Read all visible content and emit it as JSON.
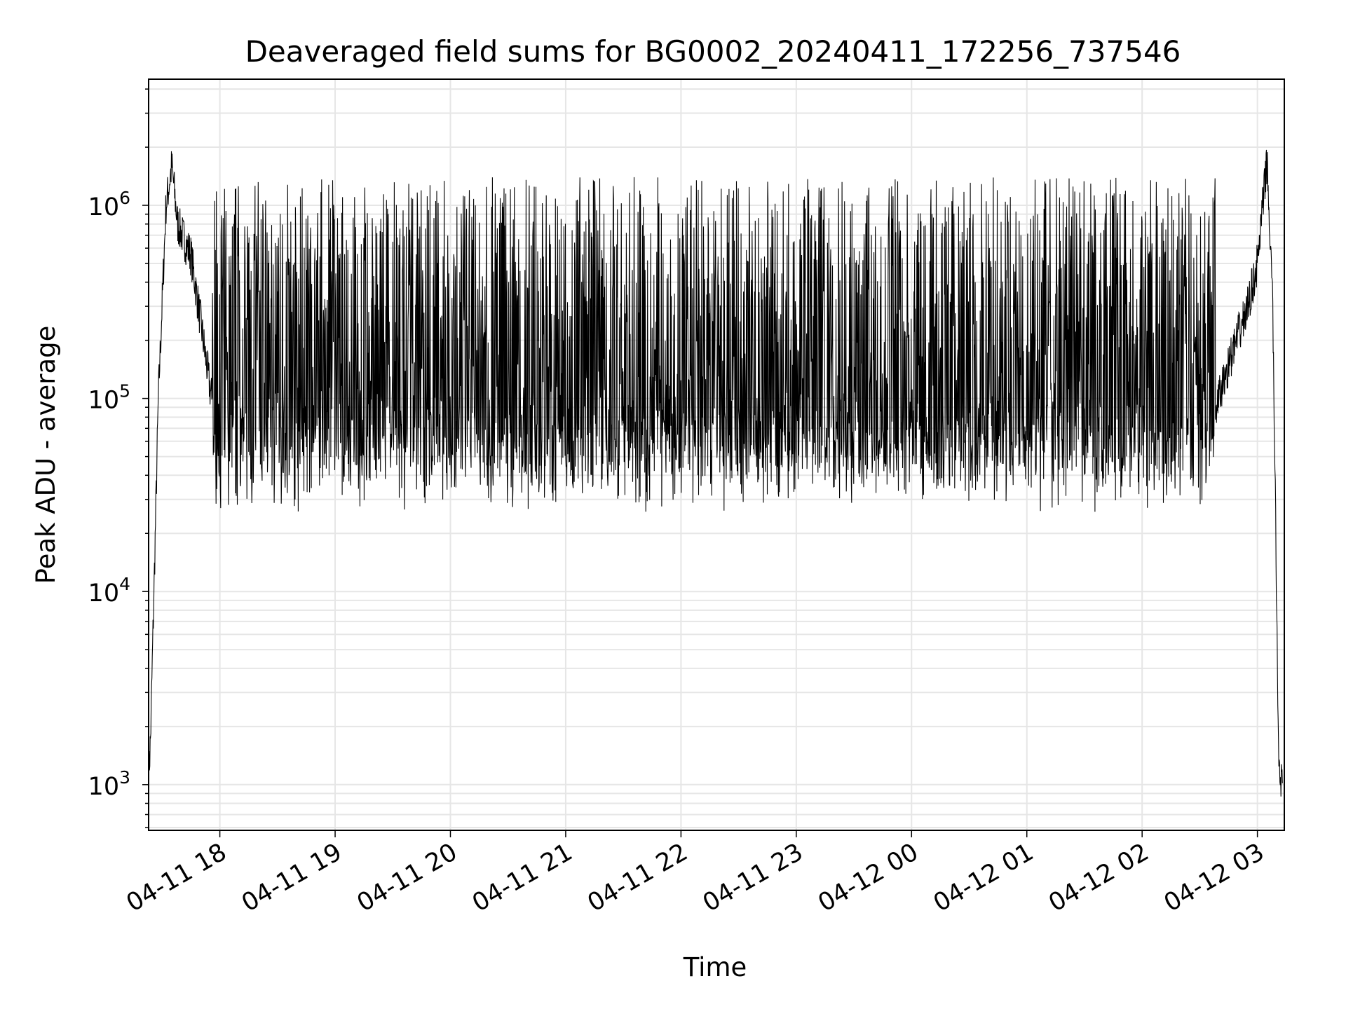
{
  "chart_data": {
    "type": "line",
    "title": "Deaveraged field sums for BG0002_20240411_172256_737546",
    "xlabel": "Time",
    "ylabel": "Peak ADU - average",
    "y_scale": "log",
    "ylim": [
      580,
      4500000
    ],
    "xlim": [
      "2024-04-11 17:22:56",
      "2024-04-12 03:14:00"
    ],
    "x_ticks": [
      {
        "time": "2024-04-11 18:00",
        "label": "04-11 18"
      },
      {
        "time": "2024-04-11 19:00",
        "label": "04-11 19"
      },
      {
        "time": "2024-04-11 20:00",
        "label": "04-11 20"
      },
      {
        "time": "2024-04-11 21:00",
        "label": "04-11 21"
      },
      {
        "time": "2024-04-11 22:00",
        "label": "04-11 22"
      },
      {
        "time": "2024-04-11 23:00",
        "label": "04-11 23"
      },
      {
        "time": "2024-04-12 00:00",
        "label": "04-12 00"
      },
      {
        "time": "2024-04-12 01:00",
        "label": "04-12 01"
      },
      {
        "time": "2024-04-12 02:00",
        "label": "04-12 02"
      },
      {
        "time": "2024-04-12 03:00",
        "label": "04-12 03"
      }
    ],
    "y_ticks": [
      {
        "value": 1000,
        "base": "10",
        "exp": "3"
      },
      {
        "value": 10000,
        "base": "10",
        "exp": "4"
      },
      {
        "value": 100000,
        "base": "10",
        "exp": "5"
      },
      {
        "value": 1000000,
        "base": "10",
        "exp": "6"
      }
    ],
    "grid": true,
    "line_color": "#000000",
    "grid_color": "#e6e6e6",
    "series": [
      {
        "note": "dense noisy trace; envelope points in data units",
        "x": [
          "2024-04-11 17:23",
          "2024-04-11 17:24",
          "2024-04-11 17:28",
          "2024-04-11 17:32",
          "2024-04-11 17:35",
          "2024-04-11 17:38",
          "2024-04-11 17:45",
          "2024-04-11 17:50",
          "2024-04-11 17:55",
          "2024-04-11 18:00",
          "2024-04-11 18:30",
          "2024-04-11 19:00",
          "2024-04-11 20:00",
          "2024-04-11 21:00",
          "2024-04-11 22:00",
          "2024-04-11 23:00",
          "2024-04-12 00:00",
          "2024-04-12 01:00",
          "2024-04-12 02:00",
          "2024-04-12 02:30",
          "2024-04-12 02:45",
          "2024-04-12 02:55",
          "2024-04-12 03:00",
          "2024-04-12 03:05",
          "2024-04-12 03:08",
          "2024-04-12 03:11",
          "2024-04-12 03:13"
        ],
        "y": [
          1100,
          1800,
          100000,
          1000000,
          1600000,
          800000,
          550000,
          250000,
          110000,
          60000,
          45000,
          40000,
          150000,
          400000,
          200000,
          60000,
          40000,
          35000,
          32000,
          45000,
          150000,
          300000,
          500000,
          1700000,
          300000,
          1500,
          900
        ]
      }
    ]
  }
}
